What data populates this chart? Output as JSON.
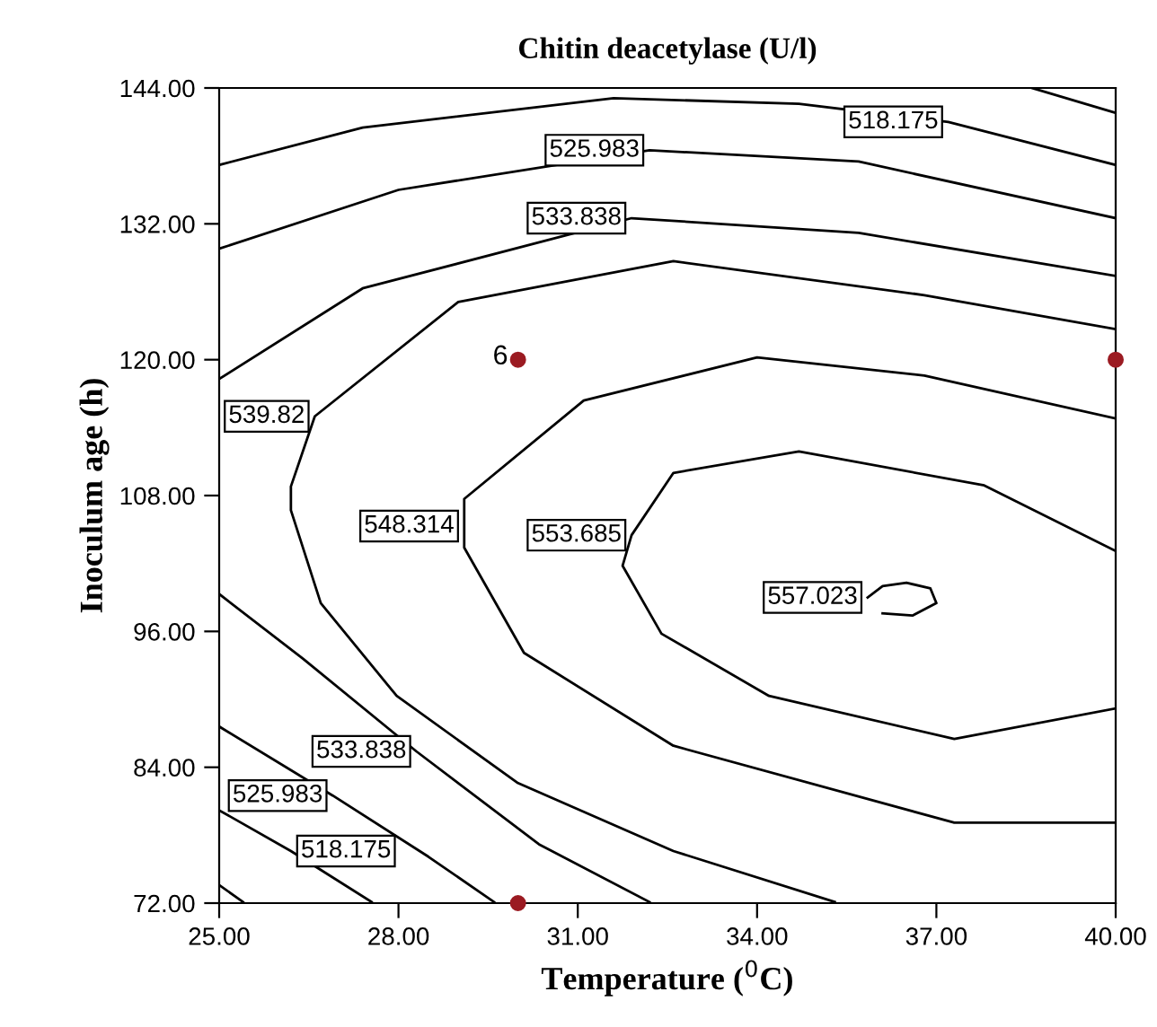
{
  "chart_data": {
    "type": "line",
    "title": "Chitin deacetylase (U/l)",
    "xlabel": "Temperature ($^{0}$C)",
    "ylabel": "Inoculum age (h)",
    "xlim": [
      25,
      40
    ],
    "ylim": [
      72,
      144
    ],
    "xticks": [
      {
        "value": 25,
        "label": "25.00"
      },
      {
        "value": 28,
        "label": "28.00"
      },
      {
        "value": 31,
        "label": "31.00"
      },
      {
        "value": 34,
        "label": "34.00"
      },
      {
        "value": 37,
        "label": "37.00"
      },
      {
        "value": 40,
        "label": "40.00"
      }
    ],
    "yticks": [
      {
        "value": 72,
        "label": "72.00"
      },
      {
        "value": 84,
        "label": "84.00"
      },
      {
        "value": 96,
        "label": "96.00"
      },
      {
        "value": 108,
        "label": "108.00"
      },
      {
        "value": 120,
        "label": "120.00"
      },
      {
        "value": 132,
        "label": "132.00"
      },
      {
        "value": 144,
        "label": "144.00"
      }
    ],
    "grid": false,
    "legend": false,
    "line_style": "solid",
    "series": [
      {
        "color": "#000000",
        "x": [
          38.6,
          40.0
        ],
        "values": [
          144.0,
          141.8
        ]
      },
      {
        "color": "#000000",
        "x": [
          25.0,
          27.4,
          31.6,
          34.7,
          37.2,
          40.0
        ],
        "values": [
          137.2,
          140.5,
          143.1,
          142.6,
          141.0,
          137.2
        ]
      },
      {
        "color": "#000000",
        "x": [
          25.0,
          28.0,
          32.2,
          35.7,
          40.0
        ],
        "values": [
          129.8,
          135.0,
          138.5,
          137.5,
          132.5
        ]
      },
      {
        "color": "#000000",
        "x": [
          25.0,
          27.4,
          31.9,
          35.7,
          40.0
        ],
        "values": [
          118.3,
          126.3,
          132.5,
          131.2,
          127.4
        ]
      },
      {
        "color": "#000000",
        "x": [
          40.0,
          36.8,
          32.6,
          29.0,
          26.6,
          26.2,
          26.2,
          26.7,
          27.97,
          30.0,
          32.6,
          35.3
        ],
        "values": [
          122.7,
          125.7,
          128.7,
          125.1,
          115.0,
          108.8,
          106.7,
          98.5,
          90.3,
          82.6,
          76.6,
          72.1
        ]
      },
      {
        "color": "#000000",
        "x": [
          40.0,
          36.8,
          34.0,
          31.1,
          29.1,
          29.1,
          29.1,
          30.1,
          32.6,
          37.3,
          40.0
        ],
        "values": [
          114.8,
          118.6,
          120.2,
          116.4,
          107.7,
          105.3,
          103.4,
          94.1,
          85.9,
          79.1,
          79.1
        ]
      },
      {
        "color": "#000000",
        "x": [
          40.0,
          37.8,
          34.7,
          32.6,
          31.9,
          31.75,
          32.4,
          34.2,
          37.3,
          40.0
        ],
        "values": [
          103.1,
          108.9,
          111.9,
          110.0,
          104.5,
          101.8,
          95.8,
          90.3,
          86.5,
          89.2
        ]
      },
      {
        "color": "#000000",
        "x": [
          35.85,
          36.1,
          36.5,
          36.9,
          37.0,
          36.6,
          36.1
        ],
        "values": [
          99.0,
          100.0,
          100.3,
          99.8,
          98.5,
          97.4,
          97.6
        ]
      },
      {
        "color": "#000000",
        "x": [
          25.0,
          26.4,
          28.3,
          30.35,
          32.2
        ],
        "values": [
          99.3,
          93.6,
          85.4,
          77.2,
          72.1
        ]
      },
      {
        "color": "#000000",
        "x": [
          25.0,
          26.9,
          28.5,
          29.6
        ],
        "values": [
          87.6,
          81.5,
          76.1,
          72.1
        ]
      },
      {
        "color": "#000000",
        "x": [
          25.0,
          26.2,
          27.55
        ],
        "values": [
          80.2,
          76.6,
          72.1
        ]
      },
      {
        "color": "#000000",
        "x": [
          25.0,
          25.4
        ],
        "values": [
          73.6,
          72.1
        ]
      },
      {
        "type": "scatter",
        "color": "#9b1b22",
        "marker": "circle",
        "x": [
          30,
          40,
          30
        ],
        "values": [
          120,
          120,
          72
        ]
      }
    ],
    "annotations": [
      {
        "text": "518.175",
        "x": 37.2,
        "y": 141.0
      },
      {
        "text": "525.983",
        "x": 32.2,
        "y": 138.5
      },
      {
        "text": "533.838",
        "x": 31.9,
        "y": 132.5
      },
      {
        "text": "539.82",
        "x": 26.6,
        "y": 115.0
      },
      {
        "text": "548.314",
        "x": 29.1,
        "y": 105.3
      },
      {
        "text": "553.685",
        "x": 31.9,
        "y": 104.5
      },
      {
        "text": "557.023",
        "x": 35.85,
        "y": 99.0
      },
      {
        "text": "533.838",
        "x": 28.3,
        "y": 85.4
      },
      {
        "text": "525.983",
        "x": 26.9,
        "y": 81.5
      },
      {
        "text": "518.175",
        "x": 26.2,
        "y": 76.6
      },
      {
        "text": "6",
        "x": 30,
        "y": 120
      }
    ]
  }
}
